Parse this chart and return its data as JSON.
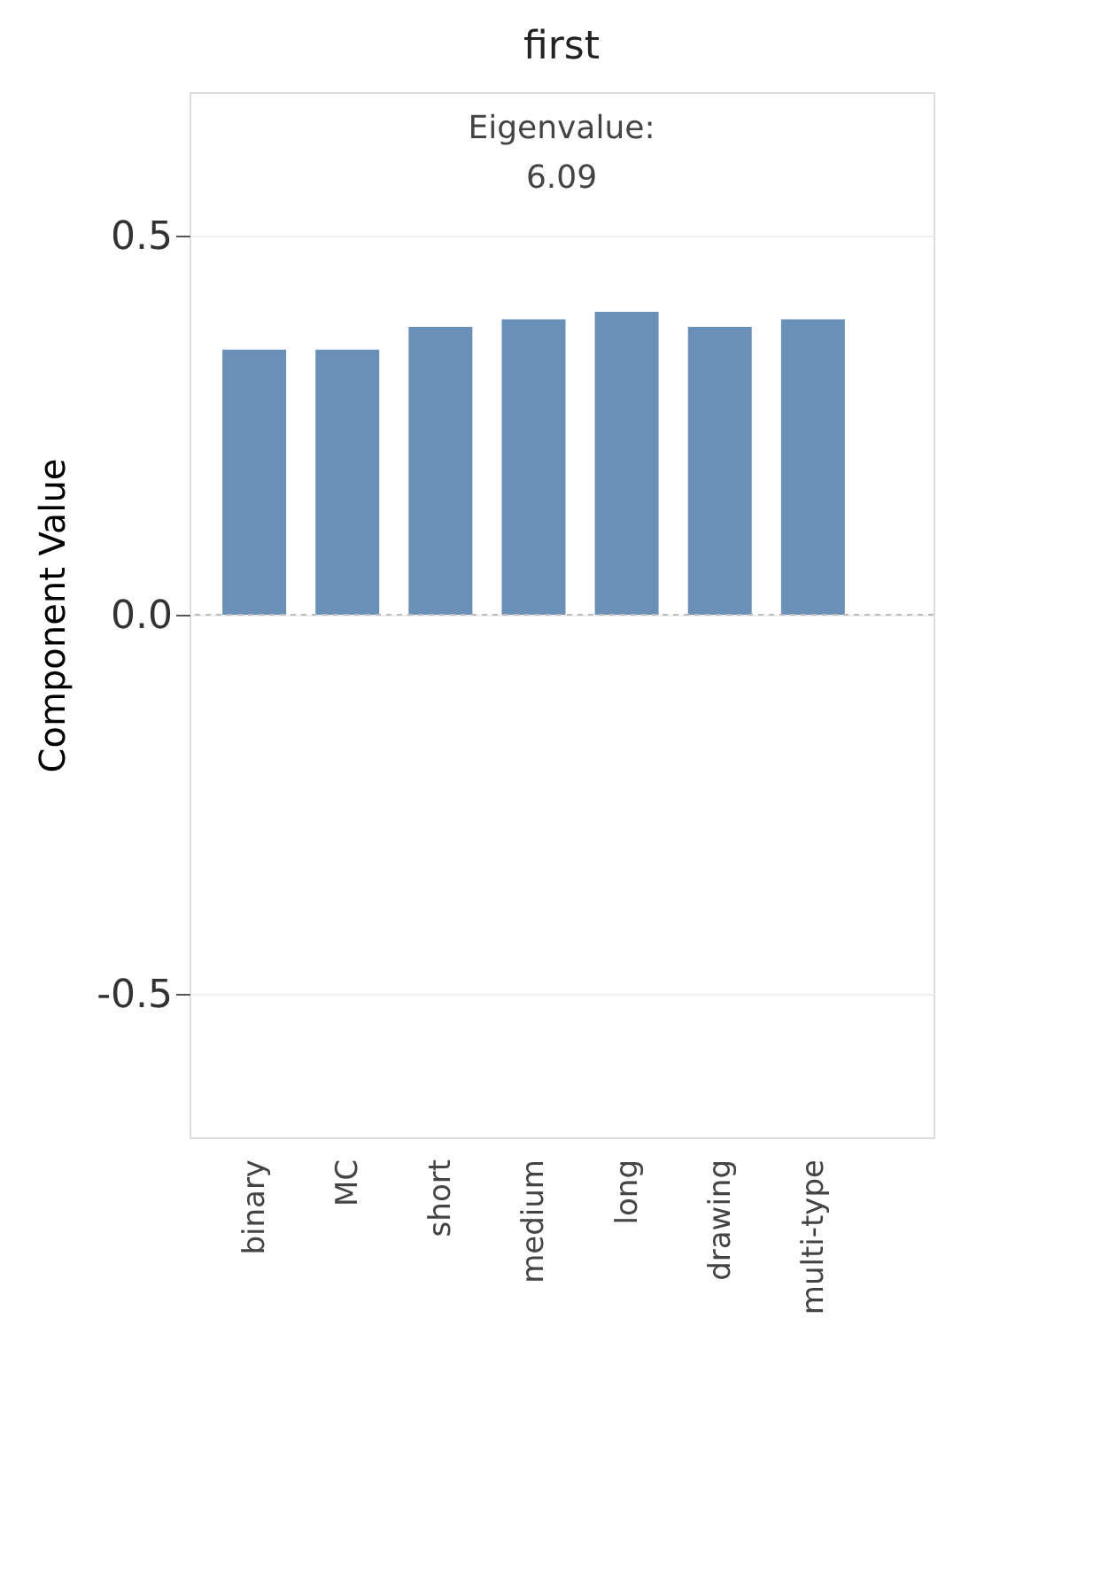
{
  "chart_data": {
    "type": "bar",
    "title": "first",
    "ylabel": "Component Value",
    "categories": [
      "binary",
      "MC",
      "short",
      "medium",
      "long",
      "drawing",
      "multi-type"
    ],
    "values": [
      0.35,
      0.35,
      0.38,
      0.39,
      0.4,
      0.38,
      0.39
    ],
    "color": "#6a90b8",
    "ylim": [
      -0.69,
      0.69
    ],
    "yticks": [
      {
        "value": -0.5,
        "label": "-0.5"
      },
      {
        "value": 0,
        "label": "0.0"
      },
      {
        "value": 0.5,
        "label": "0.5"
      }
    ],
    "grid": "y",
    "ref_lines": [
      {
        "axis": "y",
        "value": 0,
        "color": "#bbbbbb",
        "line_style": "dashed"
      }
    ],
    "annotations": [
      "Eigenvalue:\n6.09"
    ]
  }
}
